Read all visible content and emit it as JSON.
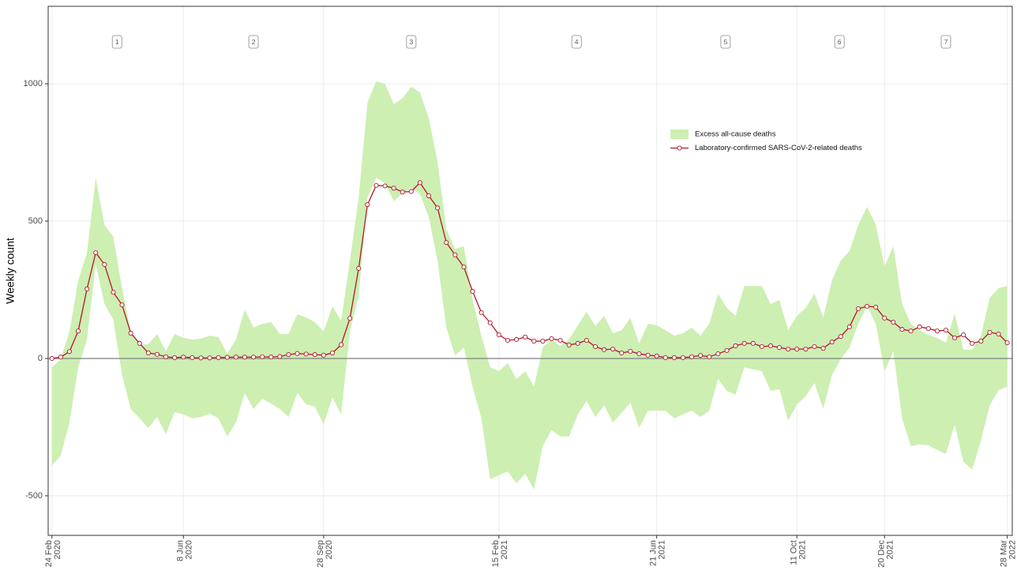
{
  "chart_data": {
    "type": "line",
    "y_label": "Weekly count",
    "x": [
      "2020-02-24",
      "2020-03-02",
      "2020-03-09",
      "2020-03-16",
      "2020-03-23",
      "2020-03-30",
      "2020-04-06",
      "2020-04-13",
      "2020-04-20",
      "2020-04-27",
      "2020-05-04",
      "2020-05-11",
      "2020-05-18",
      "2020-05-25",
      "2020-06-01",
      "2020-06-08",
      "2020-06-15",
      "2020-06-22",
      "2020-06-29",
      "2020-07-06",
      "2020-07-13",
      "2020-07-20",
      "2020-07-27",
      "2020-08-03",
      "2020-08-10",
      "2020-08-17",
      "2020-08-24",
      "2020-08-31",
      "2020-09-07",
      "2020-09-14",
      "2020-09-21",
      "2020-09-28",
      "2020-10-05",
      "2020-10-12",
      "2020-10-19",
      "2020-10-26",
      "2020-11-02",
      "2020-11-09",
      "2020-11-16",
      "2020-11-23",
      "2020-11-30",
      "2020-12-07",
      "2020-12-14",
      "2020-12-21",
      "2020-12-28",
      "2021-01-04",
      "2021-01-11",
      "2021-01-18",
      "2021-01-25",
      "2021-02-01",
      "2021-02-08",
      "2021-02-15",
      "2021-02-22",
      "2021-03-01",
      "2021-03-08",
      "2021-03-15",
      "2021-03-22",
      "2021-03-29",
      "2021-04-05",
      "2021-04-12",
      "2021-04-19",
      "2021-04-26",
      "2021-05-03",
      "2021-05-10",
      "2021-05-17",
      "2021-05-24",
      "2021-05-31",
      "2021-06-07",
      "2021-06-14",
      "2021-06-21",
      "2021-06-28",
      "2021-07-05",
      "2021-07-12",
      "2021-07-19",
      "2021-07-26",
      "2021-08-02",
      "2021-08-09",
      "2021-08-16",
      "2021-08-23",
      "2021-08-30",
      "2021-09-06",
      "2021-09-13",
      "2021-09-20",
      "2021-09-27",
      "2021-10-04",
      "2021-10-11",
      "2021-10-18",
      "2021-10-25",
      "2021-11-01",
      "2021-11-08",
      "2021-11-15",
      "2021-11-22",
      "2021-11-29",
      "2021-12-06",
      "2021-12-13",
      "2021-12-20",
      "2021-12-27",
      "2022-01-03",
      "2022-01-10",
      "2022-01-17",
      "2022-01-24",
      "2022-01-31",
      "2022-02-07",
      "2022-02-14",
      "2022-02-21",
      "2022-02-28",
      "2022-03-07",
      "2022-03-14",
      "2022-03-21",
      "2022-03-28"
    ],
    "series": [
      {
        "name": "Excess all-cause deaths",
        "kind": "band",
        "color": "#cdefb2",
        "upper": [
          -32,
          -3,
          98,
          284,
          385,
          658,
          486,
          443,
          256,
          98,
          49,
          52,
          89,
          26,
          89,
          75,
          69,
          72,
          83,
          78,
          17,
          69,
          178,
          112,
          126,
          132,
          89,
          89,
          161,
          149,
          132,
          98,
          190,
          138,
          356,
          586,
          931,
          1009,
          1000,
          925,
          948,
          989,
          968,
          874,
          716,
          471,
          399,
          408,
          213,
          83,
          -32,
          -46,
          -17,
          -75,
          -46,
          -103,
          40,
          69,
          46,
          69,
          121,
          170,
          118,
          155,
          92,
          103,
          147,
          55,
          126,
          121,
          103,
          83,
          92,
          112,
          83,
          126,
          236,
          184,
          155,
          264,
          264,
          264,
          198,
          213,
          103,
          155,
          184,
          236,
          149,
          284,
          356,
          391,
          486,
          552,
          486,
          336,
          408,
          198,
          126,
          103,
          86,
          75,
          57,
          164,
          32,
          32,
          83,
          221,
          256,
          264
        ],
        "lower": [
          -390,
          -353,
          -233,
          -32,
          69,
          342,
          198,
          141,
          -60,
          -184,
          -218,
          -253,
          -213,
          -276,
          -195,
          -204,
          -218,
          -213,
          -201,
          -218,
          -284,
          -233,
          -126,
          -184,
          -147,
          -164,
          -184,
          -213,
          -126,
          -167,
          -175,
          -239,
          -141,
          -204,
          98,
          227,
          586,
          658,
          638,
          572,
          601,
          621,
          598,
          514,
          356,
          112,
          11,
          40,
          -103,
          -218,
          -440,
          -425,
          -411,
          -454,
          -420,
          -477,
          -319,
          -261,
          -284,
          -284,
          -204,
          -155,
          -213,
          -170,
          -233,
          -198,
          -161,
          -253,
          -190,
          -190,
          -190,
          -218,
          -204,
          -190,
          -213,
          -190,
          -75,
          -118,
          -132,
          -32,
          -40,
          -46,
          -118,
          -112,
          -227,
          -167,
          -138,
          -89,
          -184,
          -60,
          -3,
          40,
          126,
          190,
          126,
          -46,
          26,
          -218,
          -319,
          -313,
          -316,
          -333,
          -348,
          -241,
          -376,
          -405,
          -299,
          -170,
          -115,
          -103
        ]
      },
      {
        "name": "Laboratory-confirmed SARS-CoV-2-related deaths",
        "kind": "line",
        "color": "#b2182b",
        "values": [
          0,
          5,
          25,
          100,
          253,
          385,
          342,
          241,
          195,
          92,
          55,
          20,
          15,
          6,
          3,
          5,
          3,
          2,
          2,
          3,
          4,
          5,
          5,
          5,
          6,
          5,
          7,
          14,
          18,
          16,
          14,
          12,
          20,
          50,
          146,
          328,
          560,
          630,
          628,
          620,
          606,
          608,
          640,
          592,
          548,
          422,
          377,
          333,
          244,
          167,
          130,
          86,
          66,
          69,
          78,
          63,
          63,
          72,
          66,
          49,
          55,
          66,
          43,
          32,
          34,
          20,
          26,
          17,
          12,
          9,
          3,
          3,
          3,
          6,
          11,
          6,
          17,
          29,
          46,
          55,
          55,
          43,
          46,
          40,
          34,
          34,
          34,
          43,
          37,
          60,
          80,
          115,
          181,
          190,
          187,
          147,
          132,
          106,
          100,
          115,
          109,
          100,
          103,
          75,
          86,
          55,
          63,
          95,
          89,
          57
        ]
      }
    ],
    "xlim": [
      "2020-02-21",
      "2022-04-01"
    ],
    "xticks": [
      {
        "value": "2020-02-24",
        "label": "24 Feb\n2020"
      },
      {
        "value": "2020-06-08",
        "label": "8 Jun\n2020"
      },
      {
        "value": "2020-09-28",
        "label": "28 Sep\n2020"
      },
      {
        "value": "2021-02-15",
        "label": "15 Feb\n2021"
      },
      {
        "value": "2021-06-21",
        "label": "21 Jun\n2021"
      },
      {
        "value": "2021-10-11",
        "label": "11 Oct\n2021"
      },
      {
        "value": "2021-12-20",
        "label": "20 Dec\n2021"
      },
      {
        "value": "2022-03-28",
        "label": "28 Mar\n2022"
      }
    ],
    "ylim": [
      -644,
      1282
    ],
    "yticks": [
      -500,
      0,
      500,
      1000
    ],
    "reference_line": 0,
    "grid": true,
    "legend": "top-right",
    "annotations": [
      {
        "text": "1",
        "x": "2020-04-16"
      },
      {
        "text": "2",
        "x": "2020-08-03"
      },
      {
        "text": "3",
        "x": "2020-12-07"
      },
      {
        "text": "4",
        "x": "2021-04-18"
      },
      {
        "text": "5",
        "x": "2021-08-15"
      },
      {
        "text": "6",
        "x": "2021-11-14"
      },
      {
        "text": "7",
        "x": "2022-02-07"
      }
    ]
  }
}
